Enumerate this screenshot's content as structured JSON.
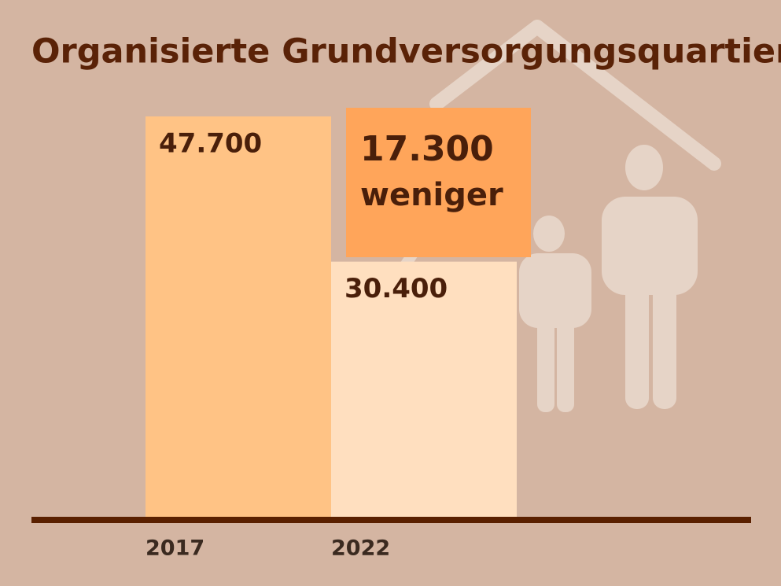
{
  "chart_data": {
    "type": "bar",
    "title": "Organisierte Grundversorgungsquartiere",
    "categories": [
      "2017",
      "2022"
    ],
    "values": [
      47700,
      30400
    ],
    "value_labels": [
      "47.700",
      "30.400"
    ],
    "colors": [
      "#ffc385",
      "#ffdfbf"
    ],
    "annotation": [
      "17.300",
      "weniger"
    ]
  }
}
